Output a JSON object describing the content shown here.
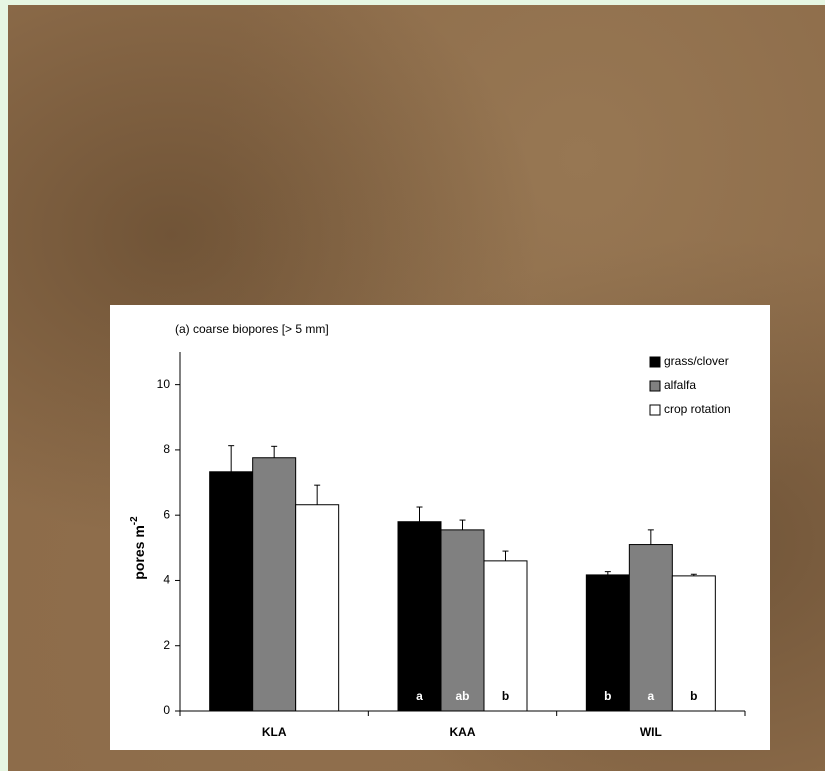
{
  "chart_data": {
    "type": "bar",
    "title": "(a) coarse biopores [> 5 mm]",
    "y_label": {
      "text": "pores m",
      "superscript": "-2"
    },
    "categories": [
      "KLA",
      "KAA",
      "WIL"
    ],
    "series": [
      {
        "name": "grass/clover",
        "color": "#000000",
        "values": [
          7.33,
          5.8,
          4.17
        ],
        "errors": [
          0.8,
          0.45,
          0.1
        ],
        "letters": [
          null,
          "a",
          "b"
        ]
      },
      {
        "name": "alfalfa",
        "color": "#808080",
        "values": [
          7.76,
          5.55,
          5.1
        ],
        "errors": [
          0.35,
          0.3,
          0.45
        ],
        "letters": [
          null,
          "ab",
          "a"
        ]
      },
      {
        "name": "crop rotation",
        "color": "#ffffff",
        "values": [
          6.32,
          4.6,
          4.14
        ],
        "errors": [
          0.6,
          0.3,
          0.05
        ],
        "letters": [
          null,
          "b",
          "b"
        ]
      }
    ],
    "ylim": [
      0,
      11
    ],
    "yticks": [
      0,
      2,
      4,
      6,
      8,
      10
    ],
    "legend": "top-right"
  }
}
